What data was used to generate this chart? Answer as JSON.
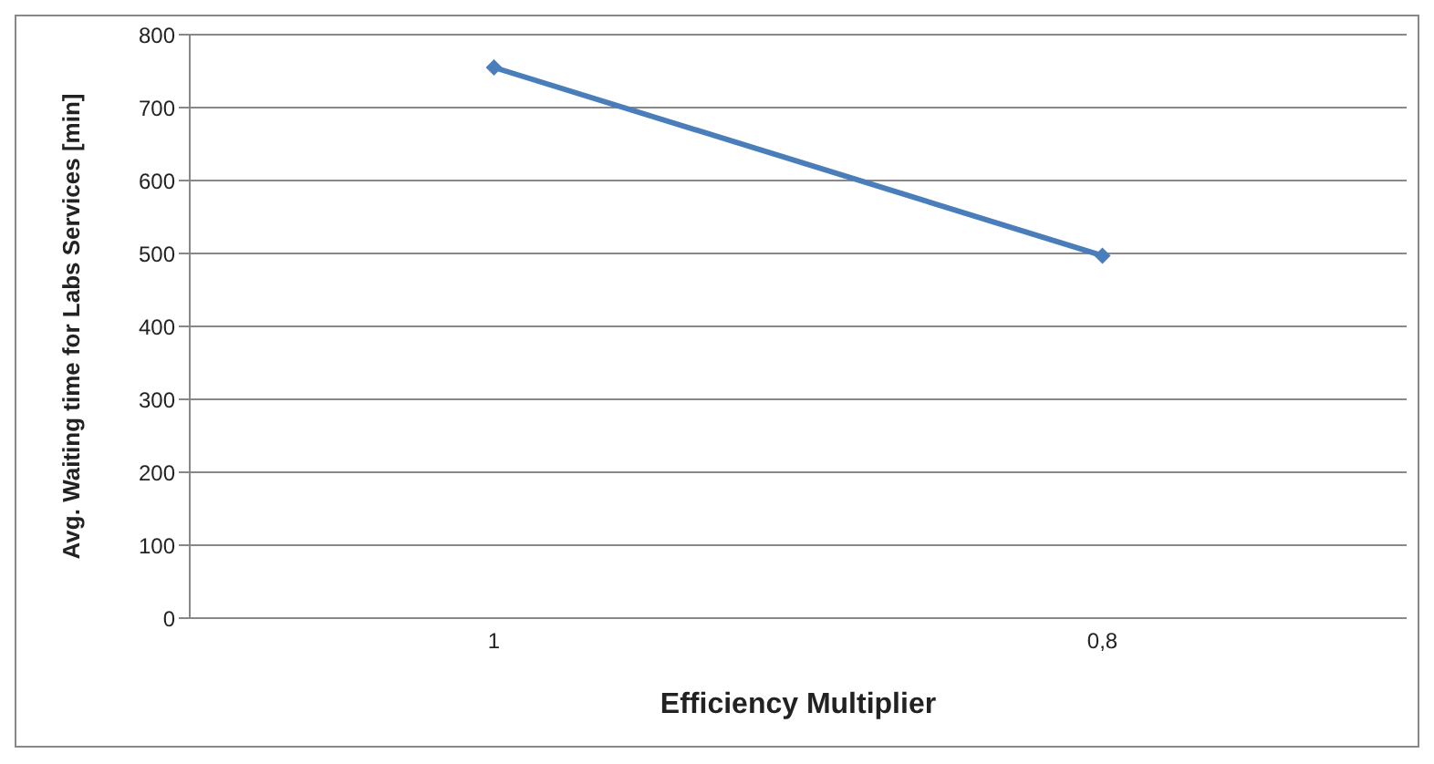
{
  "chart_data": {
    "type": "line",
    "xlabel": "Efficiency Multiplier",
    "ylabel": "Avg. Waiting time for Labs Services [min]",
    "categories": [
      "1",
      "0,8"
    ],
    "series": [
      {
        "color": "#4a7ebb",
        "values": [
          755,
          497
        ]
      }
    ],
    "ylim": [
      0,
      800
    ],
    "yticks": [
      0,
      100,
      200,
      300,
      400,
      500,
      600,
      700,
      800
    ],
    "grid": "y",
    "marker": "diamond",
    "line_style": "solid"
  }
}
